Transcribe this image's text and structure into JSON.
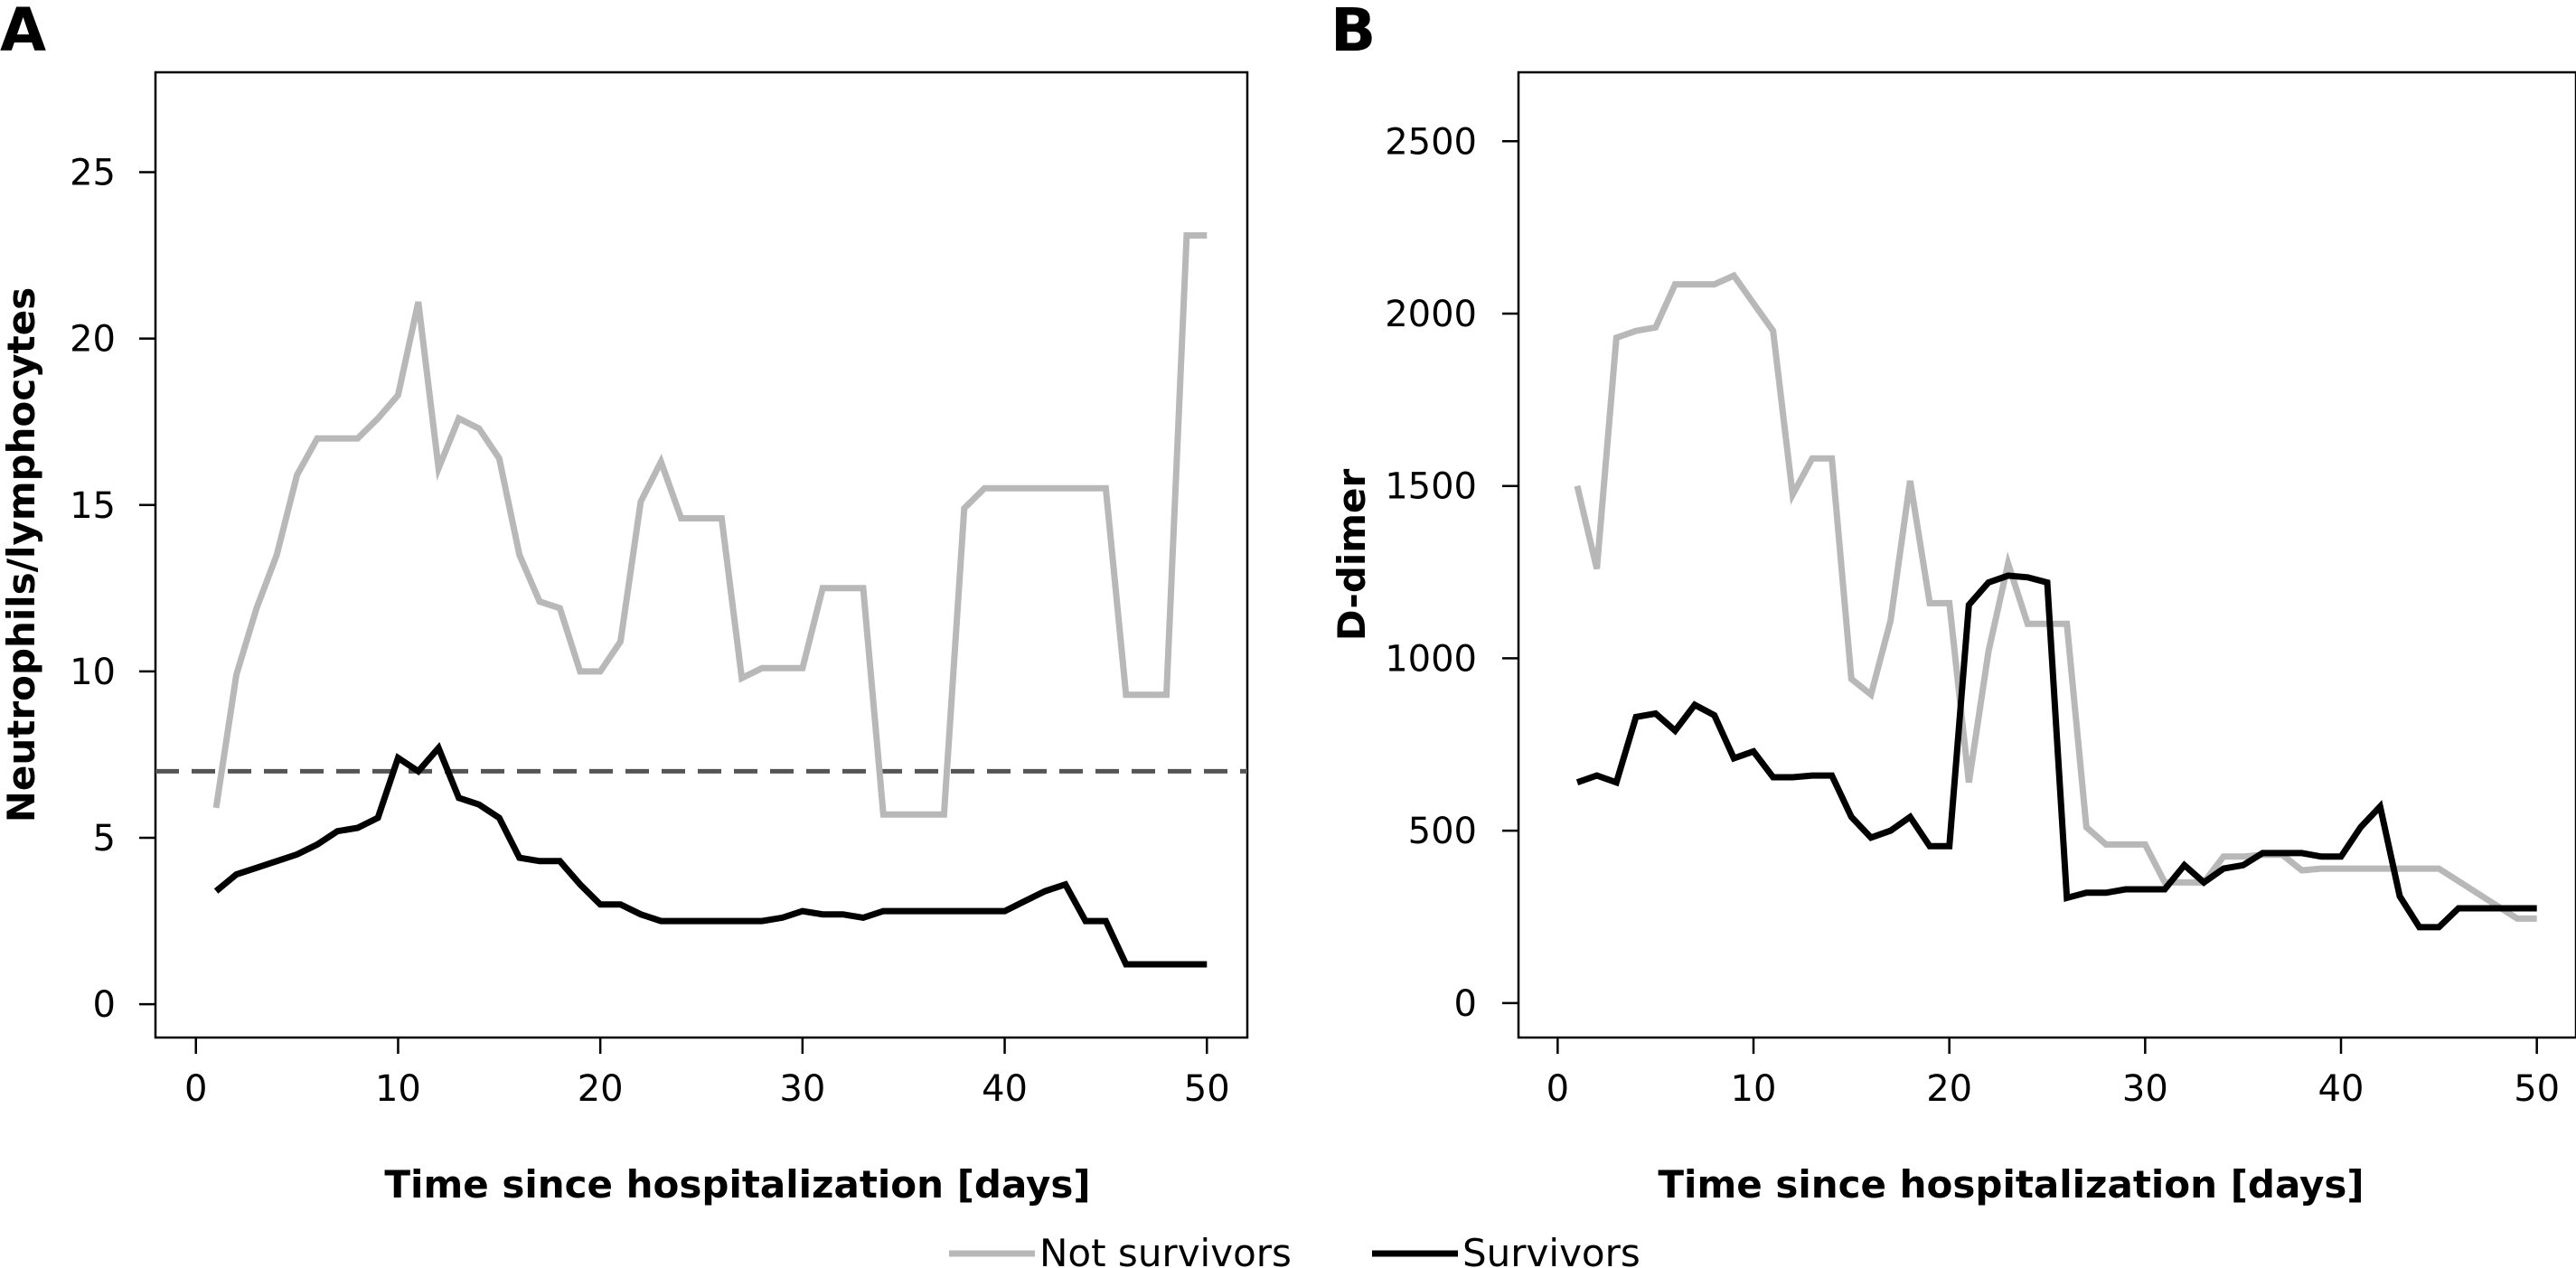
{
  "colors": {
    "not_survivors": "#b8b8b8",
    "survivors": "#000000",
    "threshold": "#555555"
  },
  "legend": [
    {
      "label": "Not survivors",
      "color": "#b8b8b8"
    },
    {
      "label": "Survivors",
      "color": "#000000"
    }
  ],
  "chart_data": [
    {
      "type": "line",
      "panel": "A",
      "title": "",
      "xlabel": "Time since hospitalization [days]",
      "ylabel": "Neutrophils/lymphocytes",
      "xlim": [
        -2,
        52
      ],
      "ylim": [
        -1,
        28
      ],
      "xticks": [
        0,
        10,
        20,
        30,
        40,
        50
      ],
      "yticks": [
        0,
        5,
        10,
        15,
        20,
        25
      ],
      "grid": false,
      "reference_line": {
        "y": 7,
        "style": "dashed"
      },
      "series": [
        {
          "name": "Not survivors",
          "x": [
            1,
            2,
            3,
            4,
            5,
            6,
            7,
            8,
            9,
            10,
            11,
            12,
            13,
            14,
            15,
            16,
            17,
            18,
            19,
            20,
            21,
            22,
            23,
            24,
            25,
            26,
            27,
            28,
            29,
            30,
            31,
            32,
            33,
            34,
            35,
            36,
            37,
            38,
            39,
            40,
            41,
            42,
            43,
            44,
            45,
            46,
            47,
            48,
            49,
            50
          ],
          "y": [
            5.9,
            9.9,
            11.9,
            13.5,
            15.9,
            17.0,
            17.0,
            17.0,
            17.6,
            18.3,
            21.1,
            16.1,
            17.6,
            17.3,
            16.4,
            13.5,
            12.1,
            11.9,
            10.0,
            10.0,
            10.9,
            15.1,
            16.3,
            14.6,
            14.6,
            14.6,
            9.8,
            10.1,
            10.1,
            10.1,
            12.5,
            12.5,
            12.5,
            5.7,
            5.7,
            5.7,
            5.7,
            14.9,
            15.5,
            15.5,
            15.5,
            15.5,
            15.5,
            15.5,
            15.5,
            9.3,
            9.3,
            9.3,
            23.1,
            23.1
          ]
        },
        {
          "name": "Survivors",
          "x": [
            1,
            2,
            3,
            4,
            5,
            6,
            7,
            8,
            9,
            10,
            11,
            12,
            13,
            14,
            15,
            16,
            17,
            18,
            19,
            20,
            21,
            22,
            23,
            24,
            25,
            26,
            27,
            28,
            29,
            30,
            31,
            32,
            33,
            34,
            35,
            36,
            37,
            38,
            39,
            40,
            41,
            42,
            43,
            44,
            45,
            46,
            47,
            48,
            49,
            50
          ],
          "y": [
            3.4,
            3.9,
            4.1,
            4.3,
            4.5,
            4.8,
            5.2,
            5.3,
            5.6,
            7.4,
            7.0,
            7.7,
            6.2,
            6.0,
            5.6,
            4.4,
            4.3,
            4.3,
            3.6,
            3.0,
            3.0,
            2.7,
            2.5,
            2.5,
            2.5,
            2.5,
            2.5,
            2.5,
            2.6,
            2.8,
            2.7,
            2.7,
            2.6,
            2.8,
            2.8,
            2.8,
            2.8,
            2.8,
            2.8,
            2.8,
            3.1,
            3.4,
            3.6,
            2.5,
            2.5,
            1.2,
            1.2,
            1.2,
            1.2,
            1.2
          ]
        }
      ]
    },
    {
      "type": "line",
      "panel": "B",
      "title": "",
      "xlabel": "Time since hospitalization [days]",
      "ylabel": "D-dimer",
      "xlim": [
        -2,
        52
      ],
      "ylim": [
        -100,
        2700
      ],
      "xticks": [
        0,
        10,
        20,
        30,
        40,
        50
      ],
      "yticks": [
        0,
        500,
        1000,
        1500,
        2000,
        2500
      ],
      "grid": false,
      "series": [
        {
          "name": "Not survivors",
          "x": [
            1,
            2,
            3,
            4,
            5,
            6,
            7,
            8,
            9,
            10,
            11,
            12,
            13,
            14,
            15,
            16,
            17,
            18,
            19,
            20,
            21,
            22,
            23,
            24,
            25,
            26,
            27,
            28,
            29,
            30,
            31,
            32,
            33,
            34,
            35,
            36,
            37,
            38,
            39,
            40,
            41,
            42,
            43,
            44,
            45,
            49,
            50
          ],
          "y": [
            1500,
            1260,
            1930,
            1950,
            1960,
            2085,
            2085,
            2085,
            2110,
            2030,
            1950,
            1475,
            1580,
            1580,
            940,
            895,
            1110,
            1515,
            1160,
            1160,
            640,
            1020,
            1275,
            1100,
            1100,
            1100,
            510,
            460,
            460,
            460,
            350,
            350,
            350,
            425,
            425,
            430,
            430,
            385,
            390,
            390,
            390,
            390,
            390,
            390,
            390,
            245,
            245
          ]
        },
        {
          "name": "Survivors",
          "x": [
            1,
            2,
            3,
            4,
            5,
            6,
            7,
            8,
            9,
            10,
            11,
            12,
            13,
            14,
            15,
            16,
            17,
            18,
            19,
            20,
            21,
            22,
            23,
            24,
            25,
            26,
            27,
            28,
            29,
            30,
            31,
            32,
            33,
            34,
            35,
            36,
            37,
            38,
            39,
            40,
            41,
            42,
            43,
            44,
            45,
            46,
            47,
            48,
            49,
            50
          ],
          "y": [
            640,
            660,
            640,
            830,
            840,
            790,
            865,
            835,
            710,
            730,
            655,
            655,
            660,
            660,
            540,
            480,
            500,
            540,
            455,
            455,
            1155,
            1220,
            1240,
            1235,
            1220,
            305,
            320,
            320,
            330,
            330,
            330,
            400,
            350,
            390,
            400,
            435,
            435,
            435,
            425,
            425,
            510,
            570,
            310,
            220,
            220,
            275,
            275,
            275,
            275,
            275
          ]
        }
      ]
    }
  ]
}
